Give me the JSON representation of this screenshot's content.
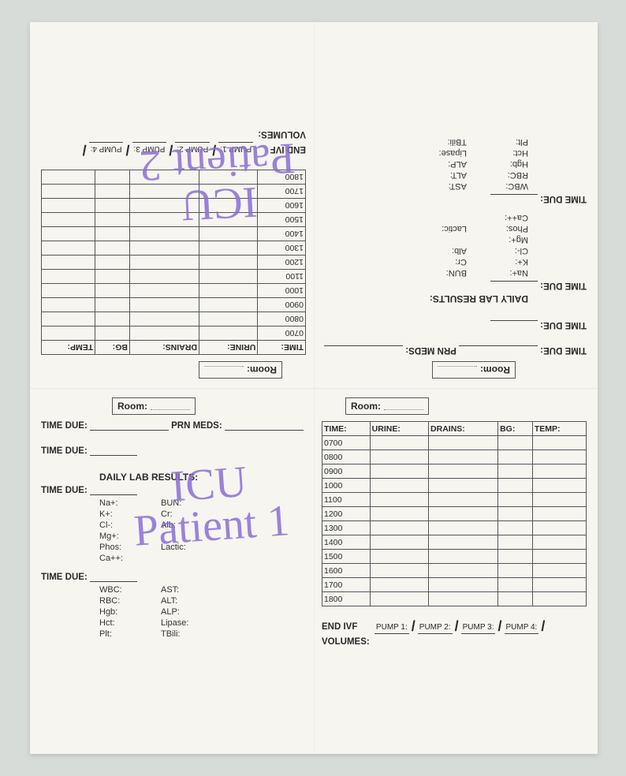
{
  "room_label": "Room:",
  "left": {
    "time_due": "TIME DUE:",
    "prn_meds": "PRN MEDS:",
    "lab_title": "DAILY LAB RESULTS:",
    "labs_col1": [
      "Na+:",
      "K+:",
      "Cl-:",
      "Mg+:",
      "Phos:",
      "Ca++:"
    ],
    "labs_col2": [
      "BUN:",
      "Cr:",
      "Alb:",
      "",
      "Lactic:",
      ""
    ],
    "labs2_col1": [
      "WBC:",
      "RBC:",
      "Hgb:",
      "Hct:",
      "Plt:"
    ],
    "labs2_col2": [
      "AST:",
      "ALT:",
      "ALP:",
      "Lipase:",
      "TBili:"
    ]
  },
  "right": {
    "headers": [
      "TIME:",
      "URINE:",
      "DRAINS:",
      "BG:",
      "TEMP:"
    ],
    "times": [
      "0700",
      "0800",
      "0900",
      "1000",
      "1100",
      "1200",
      "1300",
      "1400",
      "1500",
      "1600",
      "1700",
      "1800"
    ],
    "end_ivf": "END IVF",
    "volumes": "VOLUMES:",
    "pumps": [
      "PUMP 1:",
      "PUMP 2:",
      "PUMP 3:",
      "PUMP 4:"
    ]
  },
  "handwriting": {
    "bottom": "ICU\nPatient 1",
    "top": "ICU\nPatient 2"
  },
  "colors": {
    "paper": "#f6f5f0",
    "ink": "#2a2a2a",
    "pen": "#8a6fd6",
    "bg": "#d8dcd8",
    "border": "#555"
  }
}
